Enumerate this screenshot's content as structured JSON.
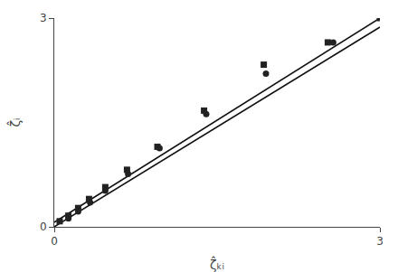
{
  "chart_data": {
    "type": "line",
    "x_label": "ζ̂ₖᵢ",
    "y_label": "ζ̂ᵢ",
    "xlim": [
      0,
      3
    ],
    "ylim": [
      0,
      3
    ],
    "xticks": [
      0,
      3
    ],
    "yticks": [
      0,
      3
    ],
    "grid": false,
    "series": [
      {
        "type": "line",
        "line_style": "solid",
        "color": "#111111",
        "x": [
          0.0,
          3.0
        ],
        "values": [
          0.065,
          3.0
        ]
      },
      {
        "type": "line",
        "line_style": "solid",
        "color": "#111111",
        "x": [
          0.0,
          3.0
        ],
        "values": [
          0.0,
          2.87
        ]
      },
      {
        "type": "scatter",
        "marker": "square",
        "color": "#222222",
        "x": [
          0.05,
          0.13,
          0.22,
          0.32,
          0.47,
          0.67,
          0.95,
          1.38,
          1.93,
          2.52,
          3.0
        ],
        "values": [
          0.08,
          0.16,
          0.27,
          0.4,
          0.57,
          0.82,
          1.15,
          1.67,
          2.33,
          2.65,
          3.0
        ]
      },
      {
        "type": "scatter",
        "marker": "circle",
        "color": "#222222",
        "x": [
          0.13,
          0.22,
          0.33,
          0.47,
          0.68,
          0.97,
          1.4,
          1.95,
          2.57
        ],
        "values": [
          0.12,
          0.22,
          0.35,
          0.52,
          0.76,
          1.13,
          1.62,
          2.2,
          2.65
        ]
      }
    ]
  }
}
